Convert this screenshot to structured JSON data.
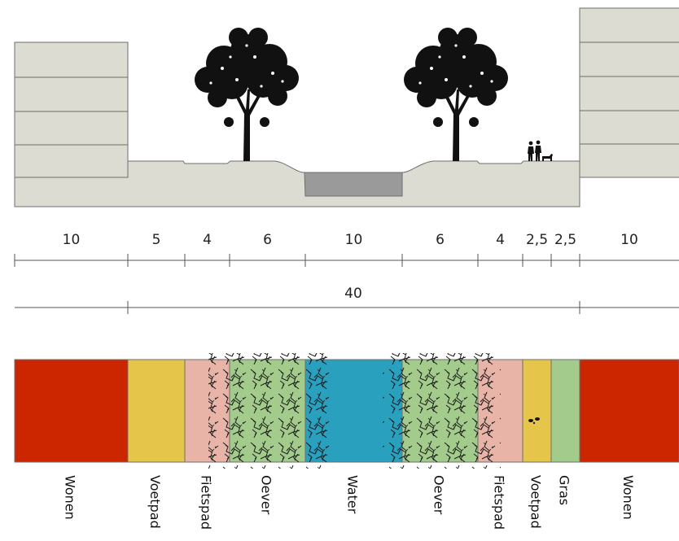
{
  "section": {
    "dimensions": [
      "10",
      "5",
      "4",
      "6",
      "10",
      "6",
      "4",
      "2,5",
      "2,5",
      "10"
    ],
    "total": "40"
  },
  "zones": [
    {
      "label": "Wonen",
      "color": "#cc2600"
    },
    {
      "label": "Voetpad",
      "color": "#e6c64a"
    },
    {
      "label": "Fietspad",
      "color": "#e8b4a8"
    },
    {
      "label": "Oever",
      "color": "#a3cc8c"
    },
    {
      "label": "Water",
      "color": "#2aa0bf"
    },
    {
      "label": "Oever",
      "color": "#a3cc8c"
    },
    {
      "label": "Fietspad",
      "color": "#e8b4a8"
    },
    {
      "label": "Voetpad",
      "color": "#e6c64a"
    },
    {
      "label": "Gras",
      "color": "#a3cc8c"
    },
    {
      "label": "Wonen",
      "color": "#cc2600"
    }
  ],
  "colors": {
    "ground": "#dcdcd2",
    "outline": "#6e6e6e",
    "channel": "#9a9a9a",
    "dimension_line": "#555555"
  },
  "icons": [
    "tree-icon",
    "pedestrians-icon",
    "dog-icon",
    "shrub-hatch-icon"
  ]
}
